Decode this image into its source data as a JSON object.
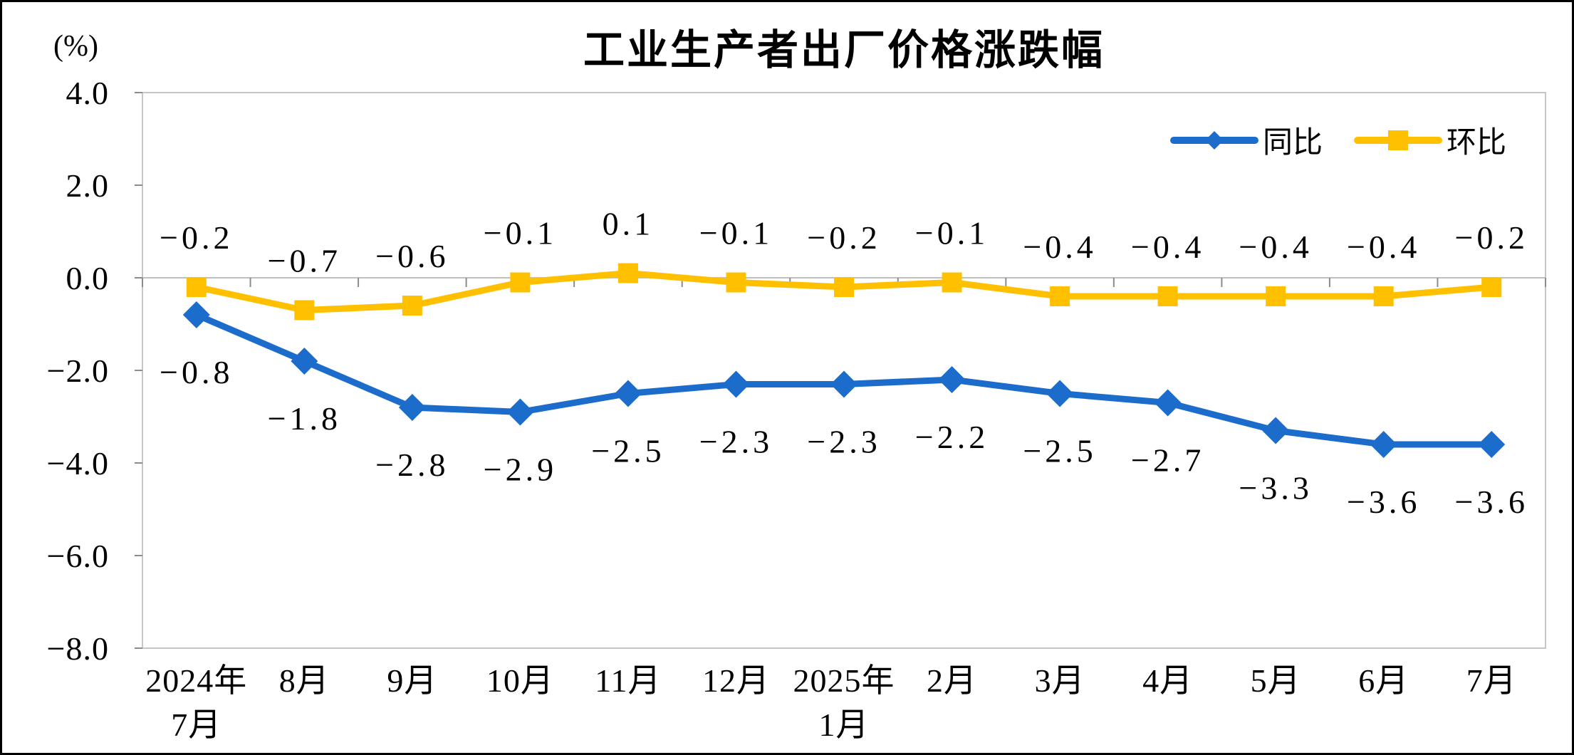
{
  "chart": {
    "title": "工业生产者出厂价格涨跌幅",
    "axis_unit": "(%)"
  },
  "chart_data": {
    "type": "line",
    "title": "工业生产者出厂价格涨跌幅",
    "ylabel": "(%)",
    "xlabel": "",
    "grid": false,
    "legend_position": "top-right",
    "ylim": [
      -8.0,
      4.0
    ],
    "y_tick_labels": [
      "4.0",
      "2.0",
      "0.0",
      "-2.0",
      "-4.0",
      "-6.0",
      "-8.0"
    ],
    "categories": [
      [
        "2024年",
        "7月"
      ],
      [
        "8月",
        ""
      ],
      [
        "9月",
        ""
      ],
      [
        "10月",
        ""
      ],
      [
        "11月",
        ""
      ],
      [
        "12月",
        ""
      ],
      [
        "2025年",
        "1月"
      ],
      [
        "2月",
        ""
      ],
      [
        "3月",
        ""
      ],
      [
        "4月",
        ""
      ],
      [
        "5月",
        ""
      ],
      [
        "6月",
        ""
      ],
      [
        "7月",
        ""
      ]
    ],
    "series": [
      {
        "name": "同比",
        "color": "#1C6CCB",
        "marker": "diamond",
        "label_side": "below",
        "values": [
          -0.8,
          -1.8,
          -2.8,
          -2.9,
          -2.5,
          -2.3,
          -2.3,
          -2.2,
          -2.5,
          -2.7,
          -3.3,
          -3.6,
          -3.6
        ]
      },
      {
        "name": "环比",
        "color": "#FFC000",
        "marker": "square",
        "label_side": "above",
        "values": [
          -0.2,
          -0.7,
          -0.6,
          -0.1,
          0.1,
          -0.1,
          -0.2,
          -0.1,
          -0.4,
          -0.4,
          -0.4,
          -0.4,
          -0.2
        ]
      }
    ]
  }
}
